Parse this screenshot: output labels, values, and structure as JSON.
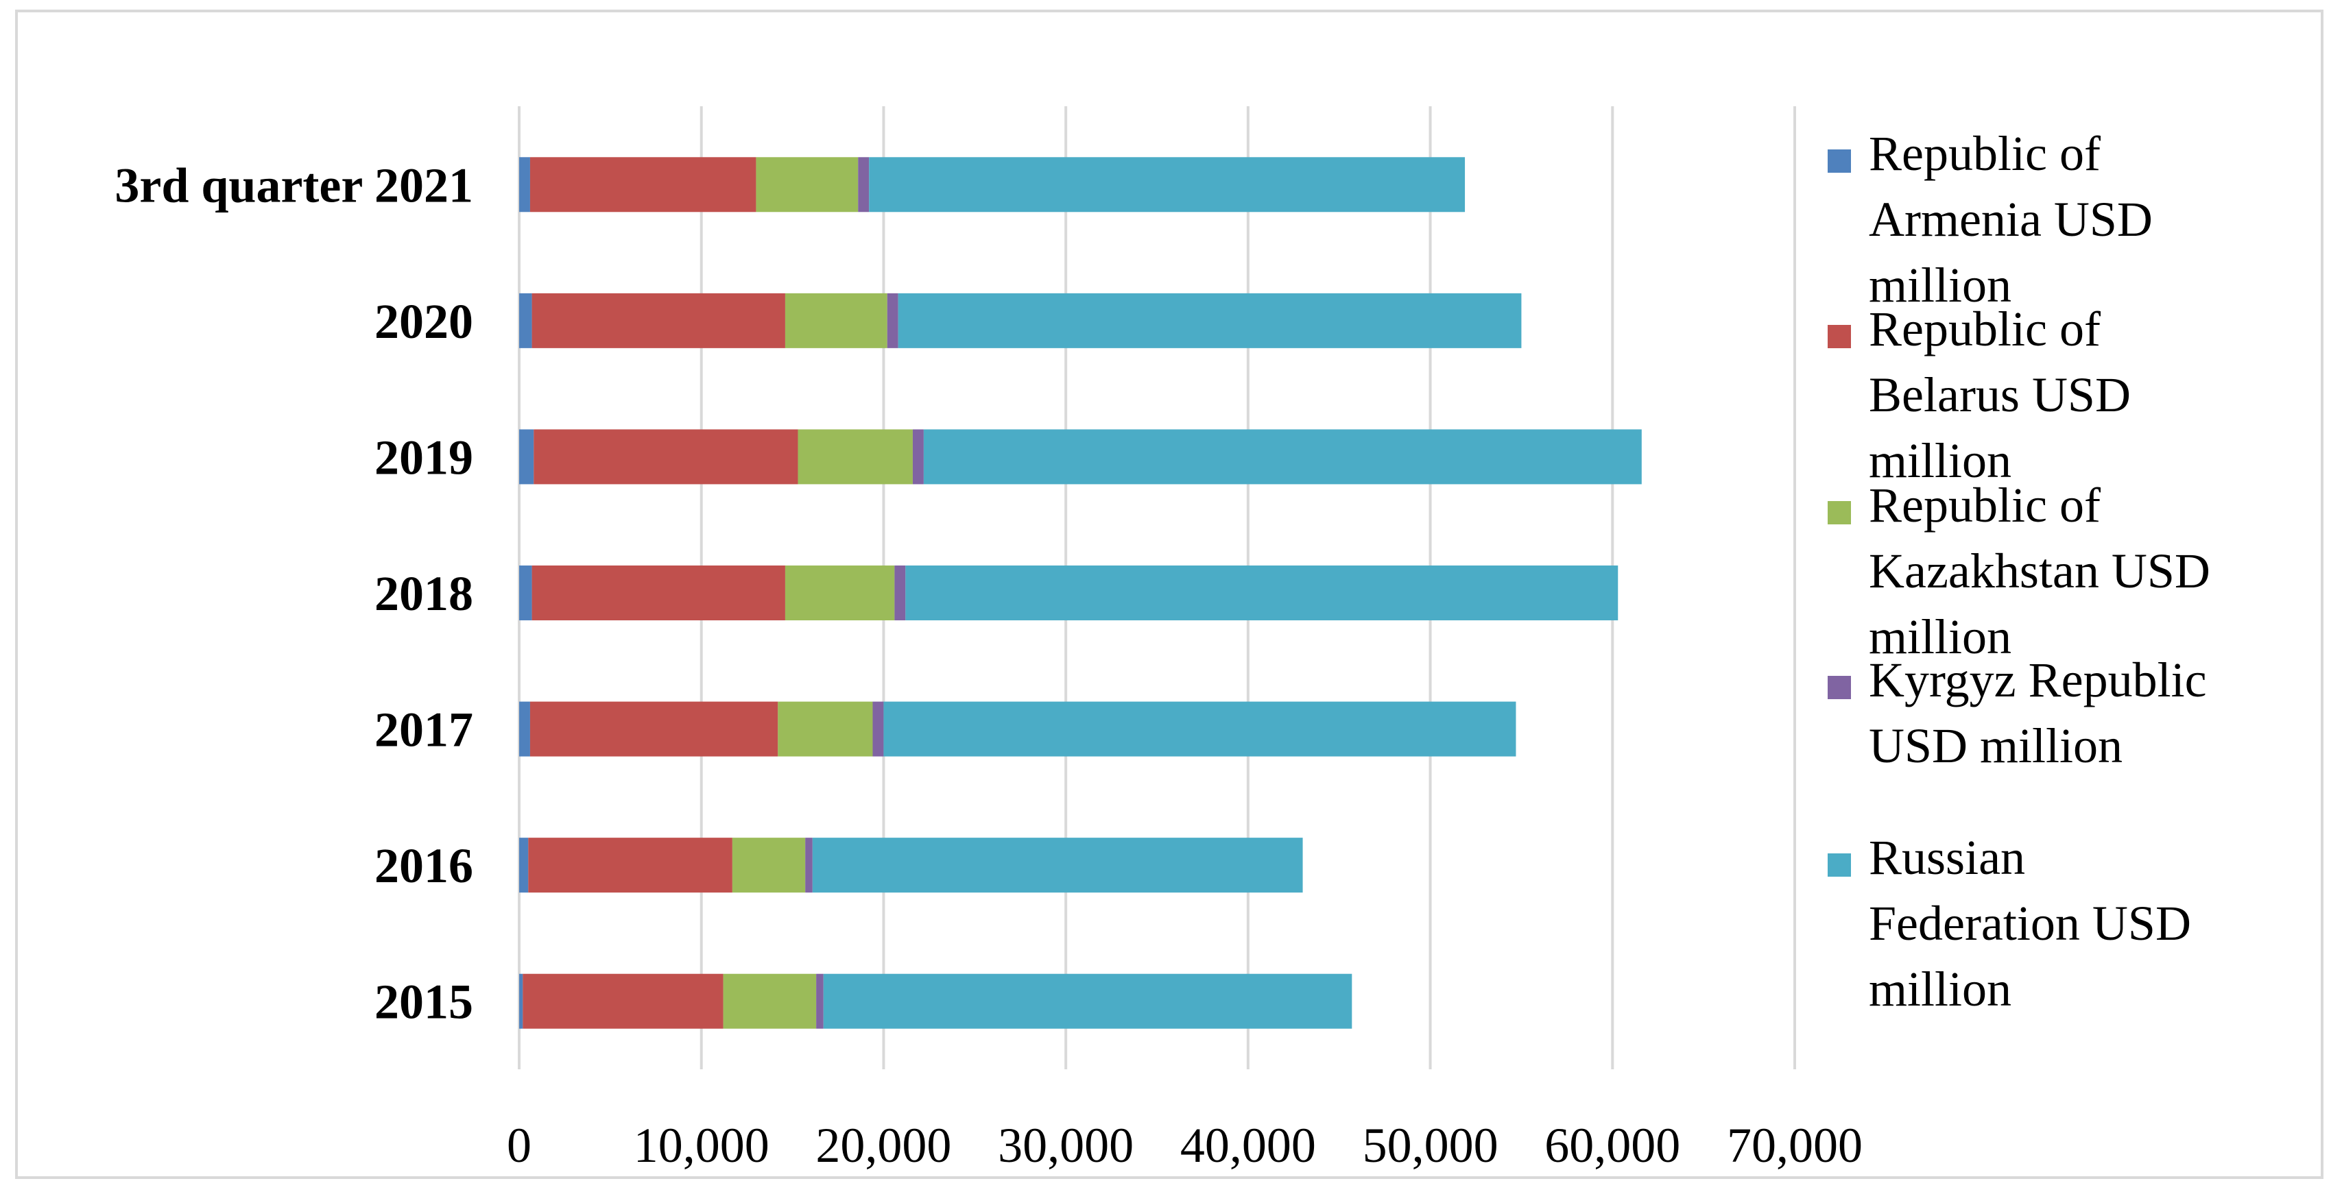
{
  "chart_data": {
    "type": "bar",
    "orientation": "horizontal",
    "stacked": true,
    "categories": [
      "2015",
      "2016",
      "2017",
      "2018",
      "2019",
      "2020",
      "3rd quarter 2021"
    ],
    "series": [
      {
        "name": "Republic of Armenia USD million",
        "color": "#4f81bd",
        "values": [
          200,
          500,
          600,
          700,
          800,
          700,
          600
        ]
      },
      {
        "name": "Republic of Belarus USD million",
        "color": "#c0504d",
        "values": [
          11000,
          11200,
          13600,
          13900,
          14500,
          13900,
          12400
        ]
      },
      {
        "name": "Republic of Kazakhstan USD million",
        "color": "#9bbb59",
        "values": [
          5100,
          4000,
          5200,
          6000,
          6300,
          5600,
          5600
        ]
      },
      {
        "name": "Kyrgyz Republic USD million",
        "color": "#8064a2",
        "values": [
          400,
          400,
          600,
          600,
          600,
          600,
          600
        ]
      },
      {
        "name": "Russian Federation USD million",
        "color": "#4bacc6",
        "values": [
          29000,
          26900,
          34700,
          39100,
          39400,
          34200,
          32700
        ]
      }
    ],
    "xlim": [
      0,
      70000
    ],
    "x_ticks": [
      "0",
      "10,000",
      "20,000",
      "30,000",
      "40,000",
      "50,000",
      "60,000",
      "70,000"
    ],
    "grid": true,
    "legend_position": "right"
  }
}
